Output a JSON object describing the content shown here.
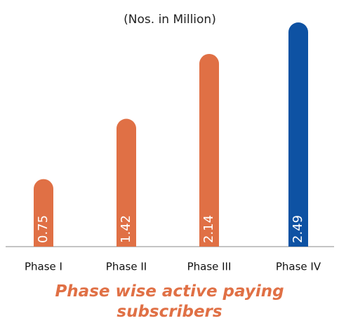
{
  "chart_data": {
    "type": "bar",
    "subtitle": "(Nos. in Million)",
    "title": "Phase wise active paying subscribers",
    "categories": [
      "Phase I",
      "Phase II",
      "Phase III",
      "Phase IV"
    ],
    "values": [
      0.75,
      1.42,
      2.14,
      2.49
    ],
    "colors": [
      "#e07045",
      "#e07045",
      "#e07045",
      "#0e52a3"
    ],
    "title_color": "#e07045"
  }
}
